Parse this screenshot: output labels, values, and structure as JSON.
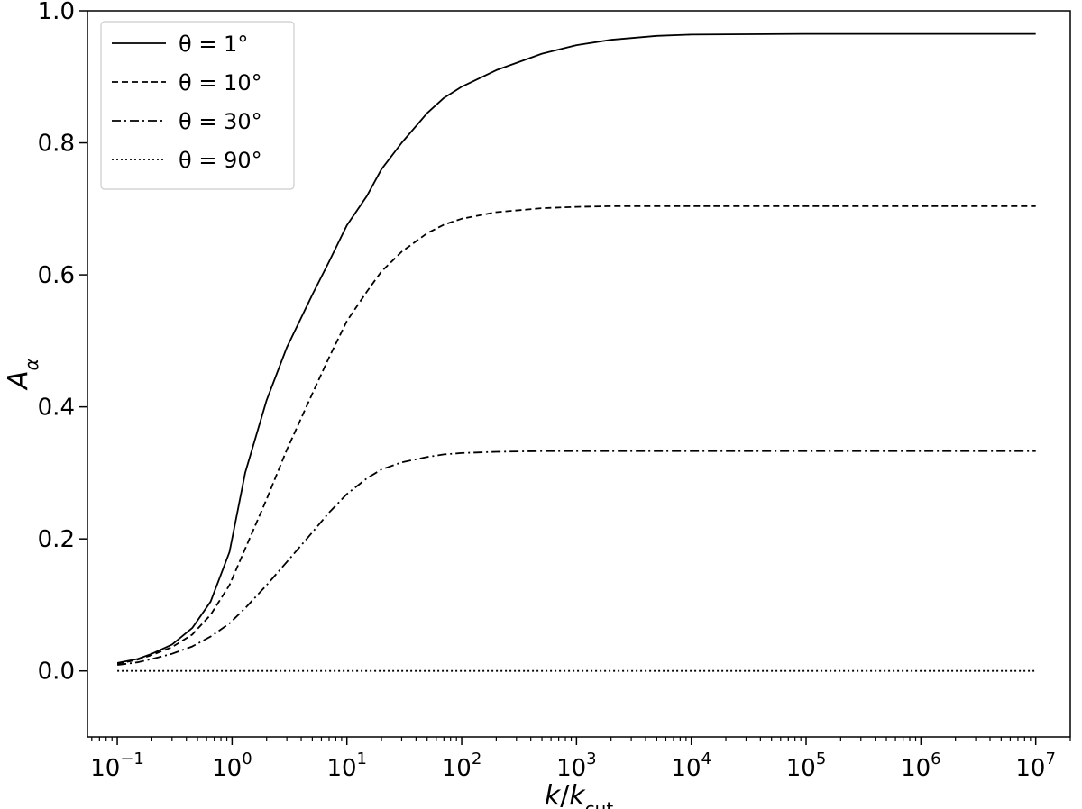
{
  "chart_data": {
    "type": "line",
    "title": "",
    "xlabel": "k/k_cut",
    "ylabel": "A_α",
    "xscale": "log",
    "xlim": [
      0.055,
      20000000
    ],
    "ylim": [
      -0.1,
      1.0
    ],
    "grid": false,
    "legend_position": "top-left",
    "x_ticks": [
      {
        "value": 0.1,
        "base": "10",
        "exp": "−1"
      },
      {
        "value": 1,
        "base": "10",
        "exp": "0"
      },
      {
        "value": 10,
        "base": "10",
        "exp": "1"
      },
      {
        "value": 100,
        "base": "10",
        "exp": "2"
      },
      {
        "value": 1000,
        "base": "10",
        "exp": "3"
      },
      {
        "value": 10000,
        "base": "10",
        "exp": "4"
      },
      {
        "value": 100000,
        "base": "10",
        "exp": "5"
      },
      {
        "value": 1000000,
        "base": "10",
        "exp": "6"
      },
      {
        "value": 10000000,
        "base": "10",
        "exp": "7"
      }
    ],
    "y_ticks": [
      {
        "value": 0.0,
        "label": "0.0"
      },
      {
        "value": 0.2,
        "label": "0.2"
      },
      {
        "value": 0.4,
        "label": "0.4"
      },
      {
        "value": 0.6,
        "label": "0.6"
      },
      {
        "value": 0.8,
        "label": "0.8"
      },
      {
        "value": 1.0,
        "label": "1.0"
      }
    ],
    "x": [
      0.1,
      0.15,
      0.2,
      0.3,
      0.45,
      0.65,
      0.95,
      1.3,
      2,
      3,
      5,
      7,
      10,
      15,
      20,
      30,
      50,
      70,
      100,
      200,
      500,
      1000,
      2000,
      5000,
      10000,
      100000,
      1000000,
      10000000
    ],
    "series": [
      {
        "name": "θ = 1°",
        "dash": "solid",
        "values": [
          0.012,
          0.018,
          0.026,
          0.04,
          0.065,
          0.105,
          0.18,
          0.3,
          0.41,
          0.49,
          0.57,
          0.62,
          0.675,
          0.72,
          0.76,
          0.8,
          0.845,
          0.868,
          0.885,
          0.91,
          0.935,
          0.948,
          0.956,
          0.962,
          0.964,
          0.965,
          0.965,
          0.965
        ]
      },
      {
        "name": "θ = 10°",
        "dash": "dashed",
        "values": [
          0.011,
          0.017,
          0.024,
          0.036,
          0.055,
          0.085,
          0.13,
          0.185,
          0.26,
          0.335,
          0.42,
          0.475,
          0.53,
          0.575,
          0.605,
          0.635,
          0.663,
          0.676,
          0.685,
          0.695,
          0.701,
          0.703,
          0.704,
          0.704,
          0.704,
          0.704,
          0.704,
          0.704
        ]
      },
      {
        "name": "θ = 30°",
        "dash": "dashdot",
        "values": [
          0.009,
          0.013,
          0.018,
          0.026,
          0.037,
          0.052,
          0.072,
          0.095,
          0.13,
          0.165,
          0.21,
          0.24,
          0.268,
          0.292,
          0.305,
          0.316,
          0.324,
          0.328,
          0.33,
          0.332,
          0.333,
          0.333,
          0.333,
          0.333,
          0.333,
          0.333,
          0.333,
          0.333
        ]
      },
      {
        "name": "θ = 90°",
        "dash": "dotted",
        "values": [
          0,
          0,
          0,
          0,
          0,
          0,
          0,
          0,
          0,
          0,
          0,
          0,
          0,
          0,
          0,
          0,
          0,
          0,
          0,
          0,
          0,
          0,
          0,
          0,
          0,
          0,
          0,
          0
        ]
      }
    ]
  }
}
